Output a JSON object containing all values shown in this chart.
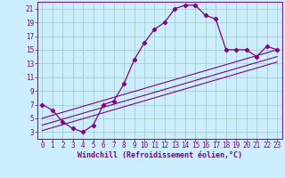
{
  "xlabel": "Windchill (Refroidissement éolien,°C)",
  "bg_color": "#cceeff",
  "line_color": "#800080",
  "grid_color": "#99ccbb",
  "xlim": [
    -0.5,
    23.5
  ],
  "ylim": [
    2.0,
    22.0
  ],
  "xticks": [
    0,
    1,
    2,
    3,
    4,
    5,
    6,
    7,
    8,
    9,
    10,
    11,
    12,
    13,
    14,
    15,
    16,
    17,
    18,
    19,
    20,
    21,
    22,
    23
  ],
  "yticks": [
    3,
    5,
    7,
    9,
    11,
    13,
    15,
    17,
    19,
    21
  ],
  "curve1_x": [
    0,
    1,
    2,
    3,
    4,
    5,
    6,
    7,
    8,
    9,
    10,
    11,
    12,
    13,
    14,
    15,
    16,
    17,
    18,
    19,
    20,
    21,
    22,
    23
  ],
  "curve1_y": [
    7.0,
    6.2,
    4.5,
    3.5,
    3.0,
    4.0,
    7.0,
    7.5,
    10.0,
    13.5,
    16.0,
    18.0,
    19.0,
    21.0,
    21.5,
    21.5,
    20.0,
    19.5,
    15.0,
    15.0,
    15.0,
    14.0,
    15.5,
    15.0
  ],
  "line2_x": [
    0,
    23
  ],
  "line2_y": [
    5.0,
    15.0
  ],
  "line3_x": [
    0,
    23
  ],
  "line3_y": [
    4.0,
    14.0
  ],
  "line4_x": [
    0,
    23
  ],
  "line4_y": [
    3.2,
    13.2
  ],
  "tick_fontsize": 5.5,
  "xlabel_fontsize": 6
}
